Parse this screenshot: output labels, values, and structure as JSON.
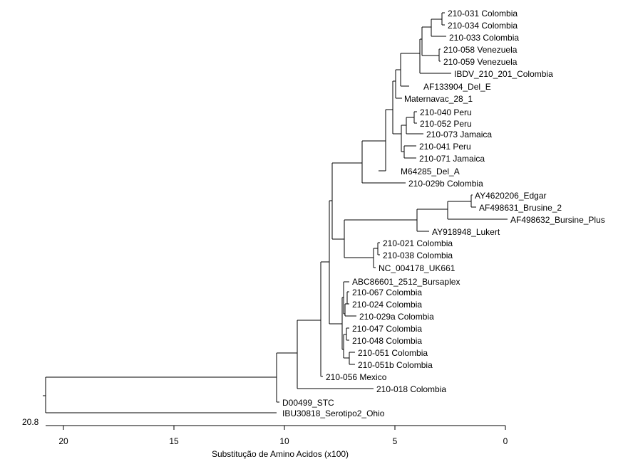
{
  "colors": {
    "line": "#000000",
    "background": "#ffffff"
  },
  "tree": {
    "scale_label": "20.8",
    "axis_title": "Substitução de Amino Acidos (x100)",
    "axis_ticks": [
      "20",
      "15",
      "10",
      "5",
      "0"
    ],
    "leaves": [
      "210-031 Colombia",
      "210-034 Colombia",
      "210-033 Colombia",
      "210-058 Venezuela",
      "210-059 Venezuela",
      "IBDV_210_201_Colombia",
      "AF133904_Del_E",
      "Maternavac_28_1",
      "210-040 Peru",
      "210-052 Peru",
      "210-073 Jamaica",
      "210-041 Peru",
      "210-071 Jamaica",
      "M64285_Del_A",
      "210-029b Colombia",
      "AY4620206_Edgar",
      "AF498631_Brusine_2",
      "AF498632_Bursine_Plus",
      "AY918948_Lukert",
      "210-021 Colombia",
      "210-038 Colombia",
      "NC_004178_UK661",
      "ABC86601_2512_Bursaplex",
      "210-067 Colombia",
      "210-024 Colombia",
      "210-029a Colombia",
      "210-047 Colombia",
      "210-048 Colombia",
      "210-051 Colombia",
      "210-051b Colombia",
      "210-056 Mexico",
      "210-018 Colombia",
      "D00499_STC",
      "IBU30818_Serotipo2_Ohio"
    ]
  }
}
